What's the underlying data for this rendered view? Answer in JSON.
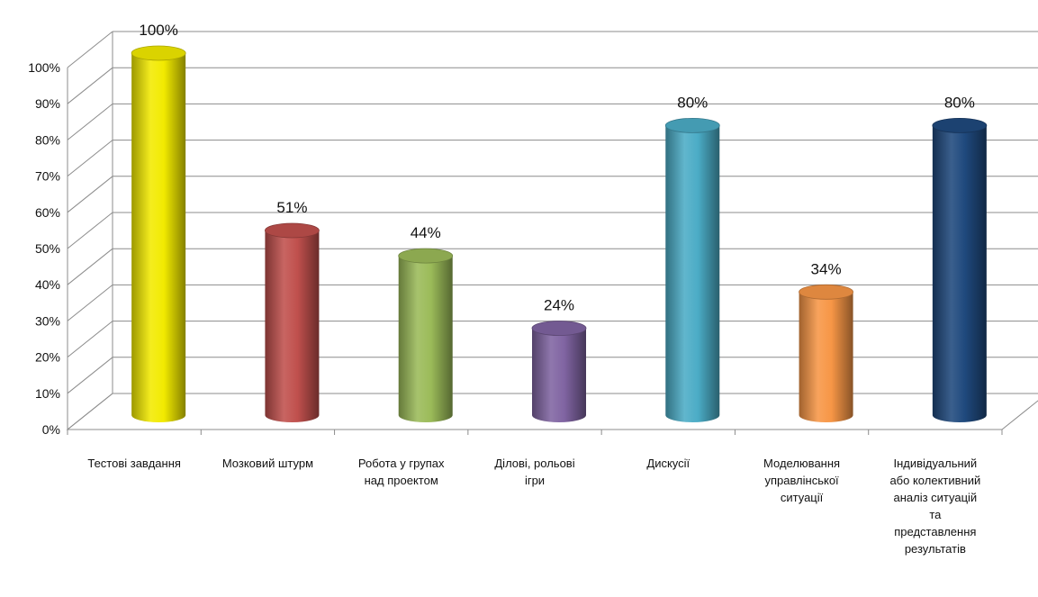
{
  "chart_data": {
    "type": "bar",
    "style": "3d-cylinder",
    "categories": [
      "Тестові завдання",
      "Мозковий штурм",
      "Робота у групах над проектом",
      "Ділові, рольові ігри",
      "Дискусії",
      "Моделювання управлінської ситуації",
      "Індивідуальний або колективний аналіз ситуацій та представлення результатів"
    ],
    "category_lines": [
      [
        "Тестові завдання"
      ],
      [
        "Мозковий штурм"
      ],
      [
        "Робота у групах",
        "над проектом"
      ],
      [
        "Ділові, рольові",
        "ігри"
      ],
      [
        "Дискусії"
      ],
      [
        "Моделювання",
        "управлінської",
        "ситуації"
      ],
      [
        "Індивідуальний",
        "або колективний",
        "аналіз ситуацій",
        "та",
        "представлення",
        "результатів"
      ]
    ],
    "values": [
      100,
      51,
      44,
      24,
      80,
      34,
      80
    ],
    "data_labels": [
      "100%",
      "51%",
      "44%",
      "24%",
      "80%",
      "34%",
      "80%"
    ],
    "colors": [
      "#f2ea00",
      "#c0504d",
      "#9bbb59",
      "#8064a2",
      "#4bacc6",
      "#f79646",
      "#1f497d"
    ],
    "ylim": [
      0,
      100
    ],
    "yticks": [
      "0%",
      "10%",
      "20%",
      "30%",
      "40%",
      "50%",
      "60%",
      "70%",
      "80%",
      "90%",
      "100%"
    ],
    "grid": true,
    "title": "",
    "xlabel": "",
    "ylabel": ""
  }
}
